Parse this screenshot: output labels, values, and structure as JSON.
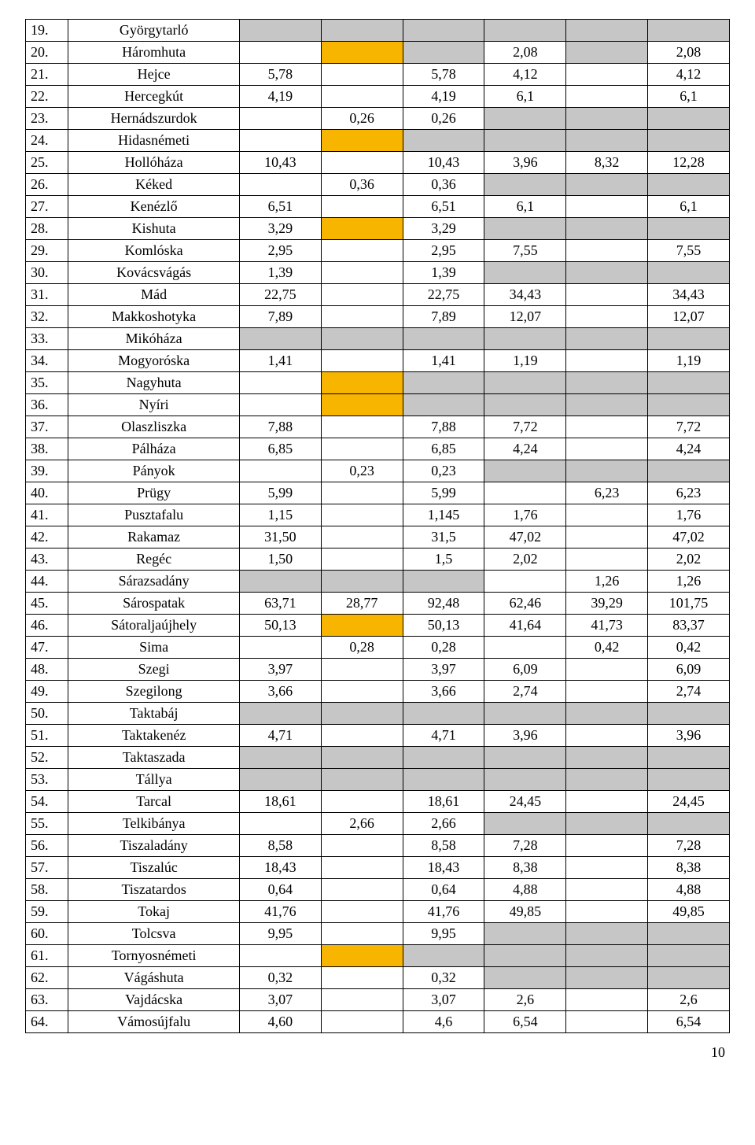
{
  "page_number": "10",
  "colors": {
    "grey": "#c6c6c6",
    "gold": "#f7b500",
    "white": "#ffffff"
  },
  "rows": [
    {
      "num": "19.",
      "name": "Györgytarló",
      "cells": [
        "",
        "",
        "",
        "",
        "",
        ""
      ],
      "bg": [
        "g",
        "g",
        "g",
        "g",
        "g",
        "g"
      ]
    },
    {
      "num": "20.",
      "name": "Háromhuta",
      "cells": [
        "",
        "",
        "",
        "2,08",
        "",
        "2,08"
      ],
      "bg": [
        "w",
        "o",
        "g",
        "w",
        "g",
        "w"
      ]
    },
    {
      "num": "21.",
      "name": "Hejce",
      "cells": [
        "5,78",
        "",
        "5,78",
        "4,12",
        "",
        "4,12"
      ],
      "bg": [
        "w",
        "w",
        "w",
        "w",
        "w",
        "w"
      ]
    },
    {
      "num": "22.",
      "name": "Hercegkút",
      "cells": [
        "4,19",
        "",
        "4,19",
        "6,1",
        "",
        "6,1"
      ],
      "bg": [
        "w",
        "w",
        "w",
        "w",
        "w",
        "w"
      ]
    },
    {
      "num": "23.",
      "name": "Hernádszurdok",
      "cells": [
        "",
        "0,26",
        "0,26",
        "",
        "",
        ""
      ],
      "bg": [
        "w",
        "w",
        "w",
        "g",
        "g",
        "g"
      ]
    },
    {
      "num": "24.",
      "name": "Hidasnémeti",
      "cells": [
        "",
        "",
        "",
        "",
        "",
        ""
      ],
      "bg": [
        "w",
        "o",
        "g",
        "g",
        "g",
        "g"
      ]
    },
    {
      "num": "25.",
      "name": "Hollóháza",
      "cells": [
        "10,43",
        "",
        "10,43",
        "3,96",
        "8,32",
        "12,28"
      ],
      "bg": [
        "w",
        "w",
        "w",
        "w",
        "w",
        "w"
      ]
    },
    {
      "num": "26.",
      "name": "Kéked",
      "cells": [
        "",
        "0,36",
        "0,36",
        "",
        "",
        ""
      ],
      "bg": [
        "w",
        "w",
        "w",
        "g",
        "g",
        "g"
      ]
    },
    {
      "num": "27.",
      "name": "Kenézlő",
      "cells": [
        "6,51",
        "",
        "6,51",
        "6,1",
        "",
        "6,1"
      ],
      "bg": [
        "w",
        "w",
        "w",
        "w",
        "w",
        "w"
      ]
    },
    {
      "num": "28.",
      "name": "Kishuta",
      "cells": [
        "3,29",
        "",
        "3,29",
        "",
        "",
        ""
      ],
      "bg": [
        "w",
        "o",
        "w",
        "g",
        "g",
        "g"
      ]
    },
    {
      "num": "29.",
      "name": "Komlóska",
      "cells": [
        "2,95",
        "",
        "2,95",
        "7,55",
        "",
        "7,55"
      ],
      "bg": [
        "w",
        "w",
        "w",
        "w",
        "w",
        "w"
      ]
    },
    {
      "num": "30.",
      "name": "Kovácsvágás",
      "cells": [
        "1,39",
        "",
        "1,39",
        "",
        "",
        ""
      ],
      "bg": [
        "w",
        "w",
        "w",
        "g",
        "g",
        "g"
      ]
    },
    {
      "num": "31.",
      "name": "Mád",
      "cells": [
        "22,75",
        "",
        "22,75",
        "34,43",
        "",
        "34,43"
      ],
      "bg": [
        "w",
        "w",
        "w",
        "w",
        "w",
        "w"
      ]
    },
    {
      "num": "32.",
      "name": "Makkoshotyka",
      "cells": [
        "7,89",
        "",
        "7,89",
        "12,07",
        "",
        "12,07"
      ],
      "bg": [
        "w",
        "w",
        "w",
        "w",
        "w",
        "w"
      ]
    },
    {
      "num": "33.",
      "name": "Mikóháza",
      "cells": [
        "",
        "",
        "",
        "",
        "",
        ""
      ],
      "bg": [
        "g",
        "g",
        "g",
        "g",
        "g",
        "g"
      ]
    },
    {
      "num": "34.",
      "name": "Mogyoróska",
      "cells": [
        "1,41",
        "",
        "1,41",
        "1,19",
        "",
        "1,19"
      ],
      "bg": [
        "w",
        "w",
        "w",
        "w",
        "w",
        "w"
      ]
    },
    {
      "num": "35.",
      "name": "Nagyhuta",
      "cells": [
        "",
        "",
        "",
        "",
        "",
        ""
      ],
      "bg": [
        "w",
        "o",
        "g",
        "g",
        "g",
        "g"
      ]
    },
    {
      "num": "36.",
      "name": "Nyíri",
      "cells": [
        "",
        "",
        "",
        "",
        "",
        ""
      ],
      "bg": [
        "w",
        "o",
        "g",
        "g",
        "g",
        "g"
      ]
    },
    {
      "num": "37.",
      "name": "Olaszliszka",
      "cells": [
        "7,88",
        "",
        "7,88",
        "7,72",
        "",
        "7,72"
      ],
      "bg": [
        "w",
        "w",
        "w",
        "w",
        "w",
        "w"
      ]
    },
    {
      "num": "38.",
      "name": "Pálháza",
      "cells": [
        "6,85",
        "",
        "6,85",
        "4,24",
        "",
        "4,24"
      ],
      "bg": [
        "w",
        "w",
        "w",
        "w",
        "w",
        "w"
      ]
    },
    {
      "num": "39.",
      "name": "Pányok",
      "cells": [
        "",
        "0,23",
        "0,23",
        "",
        "",
        ""
      ],
      "bg": [
        "w",
        "w",
        "w",
        "g",
        "g",
        "g"
      ]
    },
    {
      "num": "40.",
      "name": "Prügy",
      "cells": [
        "5,99",
        "",
        "5,99",
        "",
        "6,23",
        "6,23"
      ],
      "bg": [
        "w",
        "w",
        "w",
        "w",
        "w",
        "w"
      ]
    },
    {
      "num": "41.",
      "name": "Pusztafalu",
      "cells": [
        "1,15",
        "",
        "1,145",
        "1,76",
        "",
        "1,76"
      ],
      "bg": [
        "w",
        "w",
        "w",
        "w",
        "w",
        "w"
      ]
    },
    {
      "num": "42.",
      "name": "Rakamaz",
      "cells": [
        "31,50",
        "",
        "31,5",
        "47,02",
        "",
        "47,02"
      ],
      "bg": [
        "w",
        "w",
        "w",
        "w",
        "w",
        "w"
      ]
    },
    {
      "num": "43.",
      "name": "Regéc",
      "cells": [
        "1,50",
        "",
        "1,5",
        "2,02",
        "",
        "2,02"
      ],
      "bg": [
        "w",
        "w",
        "w",
        "w",
        "w",
        "w"
      ]
    },
    {
      "num": "44.",
      "name": "Sárazsadány",
      "cells": [
        "",
        "",
        "",
        "",
        "1,26",
        "1,26"
      ],
      "bg": [
        "g",
        "g",
        "g",
        "w",
        "w",
        "w"
      ]
    },
    {
      "num": "45.",
      "name": "Sárospatak",
      "cells": [
        "63,71",
        "28,77",
        "92,48",
        "62,46",
        "39,29",
        "101,75"
      ],
      "bg": [
        "w",
        "w",
        "w",
        "w",
        "w",
        "w"
      ]
    },
    {
      "num": "46.",
      "name": "Sátoraljaújhely",
      "cells": [
        "50,13",
        "",
        "50,13",
        "41,64",
        "41,73",
        "83,37"
      ],
      "bg": [
        "w",
        "o",
        "w",
        "w",
        "w",
        "w"
      ]
    },
    {
      "num": "47.",
      "name": "Sima",
      "cells": [
        "",
        "0,28",
        "0,28",
        "",
        "0,42",
        "0,42"
      ],
      "bg": [
        "w",
        "w",
        "w",
        "w",
        "w",
        "w"
      ]
    },
    {
      "num": "48.",
      "name": "Szegi",
      "cells": [
        "3,97",
        "",
        "3,97",
        "6,09",
        "",
        "6,09"
      ],
      "bg": [
        "w",
        "w",
        "w",
        "w",
        "w",
        "w"
      ]
    },
    {
      "num": "49.",
      "name": "Szegilong",
      "cells": [
        "3,66",
        "",
        "3,66",
        "2,74",
        "",
        "2,74"
      ],
      "bg": [
        "w",
        "w",
        "w",
        "w",
        "w",
        "w"
      ]
    },
    {
      "num": "50.",
      "name": "Taktabáj",
      "cells": [
        "",
        "",
        "",
        "",
        "",
        ""
      ],
      "bg": [
        "g",
        "g",
        "g",
        "g",
        "g",
        "g"
      ]
    },
    {
      "num": "51.",
      "name": "Taktakenéz",
      "cells": [
        "4,71",
        "",
        "4,71",
        "3,96",
        "",
        "3,96"
      ],
      "bg": [
        "w",
        "w",
        "w",
        "w",
        "w",
        "w"
      ]
    },
    {
      "num": "52.",
      "name": "Taktaszada",
      "cells": [
        "",
        "",
        "",
        "",
        "",
        ""
      ],
      "bg": [
        "g",
        "g",
        "g",
        "g",
        "g",
        "g"
      ]
    },
    {
      "num": "53.",
      "name": "Tállya",
      "cells": [
        "",
        "",
        "",
        "",
        "",
        ""
      ],
      "bg": [
        "g",
        "g",
        "g",
        "g",
        "g",
        "g"
      ]
    },
    {
      "num": "54.",
      "name": "Tarcal",
      "cells": [
        "18,61",
        "",
        "18,61",
        "24,45",
        "",
        "24,45"
      ],
      "bg": [
        "w",
        "w",
        "w",
        "w",
        "w",
        "w"
      ]
    },
    {
      "num": "55.",
      "name": "Telkibánya",
      "cells": [
        "",
        "2,66",
        "2,66",
        "",
        "",
        ""
      ],
      "bg": [
        "w",
        "w",
        "w",
        "g",
        "g",
        "g"
      ]
    },
    {
      "num": "56.",
      "name": "Tiszaladány",
      "cells": [
        "8,58",
        "",
        "8,58",
        "7,28",
        "",
        "7,28"
      ],
      "bg": [
        "w",
        "w",
        "w",
        "w",
        "w",
        "w"
      ]
    },
    {
      "num": "57.",
      "name": "Tiszalúc",
      "cells": [
        "18,43",
        "",
        "18,43",
        "8,38",
        "",
        "8,38"
      ],
      "bg": [
        "w",
        "w",
        "w",
        "w",
        "w",
        "w"
      ]
    },
    {
      "num": "58.",
      "name": "Tiszatardos",
      "cells": [
        "0,64",
        "",
        "0,64",
        "4,88",
        "",
        "4,88"
      ],
      "bg": [
        "w",
        "w",
        "w",
        "w",
        "w",
        "w"
      ]
    },
    {
      "num": "59.",
      "name": "Tokaj",
      "cells": [
        "41,76",
        "",
        "41,76",
        "49,85",
        "",
        "49,85"
      ],
      "bg": [
        "w",
        "w",
        "w",
        "w",
        "w",
        "w"
      ]
    },
    {
      "num": "60.",
      "name": "Tolcsva",
      "cells": [
        "9,95",
        "",
        "9,95",
        "",
        "",
        ""
      ],
      "bg": [
        "w",
        "w",
        "w",
        "g",
        "g",
        "g"
      ]
    },
    {
      "num": "61.",
      "name": "Tornyosnémeti",
      "cells": [
        "",
        "",
        "",
        "",
        "",
        ""
      ],
      "bg": [
        "w",
        "o",
        "g",
        "g",
        "g",
        "g"
      ]
    },
    {
      "num": "62.",
      "name": "Vágáshuta",
      "cells": [
        "0,32",
        "",
        "0,32",
        "",
        "",
        ""
      ],
      "bg": [
        "w",
        "w",
        "w",
        "g",
        "g",
        "g"
      ]
    },
    {
      "num": "63.",
      "name": "Vajdácska",
      "cells": [
        "3,07",
        "",
        "3,07",
        "2,6",
        "",
        "2,6"
      ],
      "bg": [
        "w",
        "w",
        "w",
        "w",
        "w",
        "w"
      ]
    },
    {
      "num": "64.",
      "name": "Vámosújfalu",
      "cells": [
        "4,60",
        "",
        "4,6",
        "6,54",
        "",
        "6,54"
      ],
      "bg": [
        "w",
        "w",
        "w",
        "w",
        "w",
        "w"
      ]
    }
  ]
}
